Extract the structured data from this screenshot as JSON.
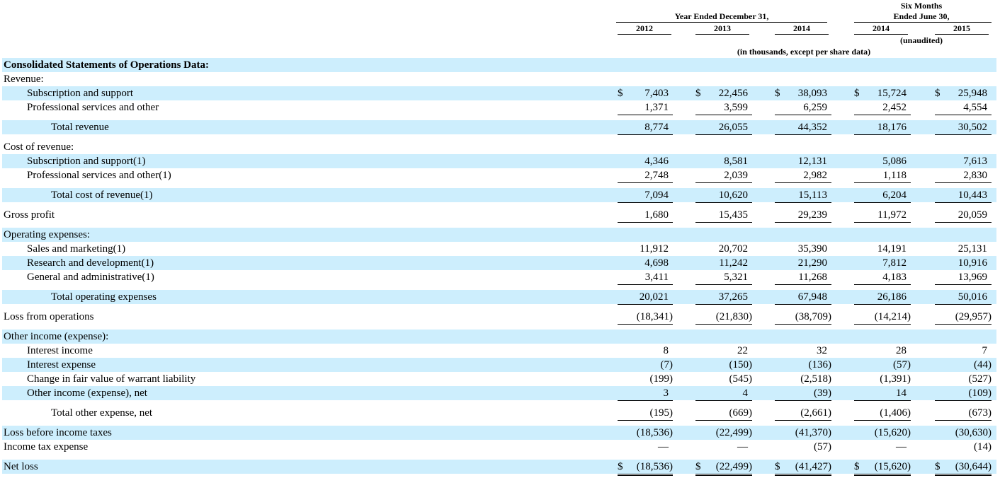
{
  "header": {
    "six_months_line1": "Six Months",
    "six_months_line2": "Ended June 30,",
    "year_ended": "Year Ended December 31,",
    "years": [
      "2012",
      "2013",
      "2014",
      "2014",
      "2015"
    ],
    "unaudited": "(unaudited)",
    "units_note": "(in thousands, except per share data)"
  },
  "section_title": "Consolidated Statements of Operations Data:",
  "currency_symbol": "$",
  "rows": [
    {
      "label": "Revenue:",
      "values": []
    },
    {
      "label": "Subscription and support",
      "values": [
        "7,403",
        "22,456",
        "38,093",
        "15,724",
        "25,948"
      ]
    },
    {
      "label": "Professional services and other",
      "values": [
        "1,371",
        "3,599",
        "6,259",
        "2,452",
        "4,554"
      ]
    },
    {
      "label": "Total revenue",
      "values": [
        "8,774",
        "26,055",
        "44,352",
        "18,176",
        "30,502"
      ]
    },
    {
      "label": "Cost of revenue:",
      "values": []
    },
    {
      "label": "Subscription and support(1)",
      "values": [
        "4,346",
        "8,581",
        "12,131",
        "5,086",
        "7,613"
      ]
    },
    {
      "label": "Professional services and other(1)",
      "values": [
        "2,748",
        "2,039",
        "2,982",
        "1,118",
        "2,830"
      ]
    },
    {
      "label": "Total cost of revenue(1)",
      "values": [
        "7,094",
        "10,620",
        "15,113",
        "6,204",
        "10,443"
      ]
    },
    {
      "label": "Gross profit",
      "values": [
        "1,680",
        "15,435",
        "29,239",
        "11,972",
        "20,059"
      ]
    },
    {
      "label": "Operating expenses:",
      "values": []
    },
    {
      "label": "Sales and marketing(1)",
      "values": [
        "11,912",
        "20,702",
        "35,390",
        "14,191",
        "25,131"
      ]
    },
    {
      "label": "Research and development(1)",
      "values": [
        "4,698",
        "11,242",
        "21,290",
        "7,812",
        "10,916"
      ]
    },
    {
      "label": "General and administrative(1)",
      "values": [
        "3,411",
        "5,321",
        "11,268",
        "4,183",
        "13,969"
      ]
    },
    {
      "label": "Total operating expenses",
      "values": [
        "20,021",
        "37,265",
        "67,948",
        "26,186",
        "50,016"
      ]
    },
    {
      "label": "Loss from operations",
      "values": [
        "(18,341)",
        "(21,830)",
        "(38,709)",
        "(14,214)",
        "(29,957)"
      ]
    },
    {
      "label": "Other income (expense):",
      "values": []
    },
    {
      "label": "Interest income",
      "values": [
        "8",
        "22",
        "32",
        "28",
        "7"
      ]
    },
    {
      "label": "Interest expense",
      "values": [
        "(7)",
        "(150)",
        "(136)",
        "(57)",
        "(44)"
      ]
    },
    {
      "label": "Change in fair value of warrant liability",
      "values": [
        "(199)",
        "(545)",
        "(2,518)",
        "(1,391)",
        "(527)"
      ]
    },
    {
      "label": "Other income (expense), net",
      "values": [
        "3",
        "4",
        "(39)",
        "14",
        "(109)"
      ]
    },
    {
      "label": "Total other expense, net",
      "values": [
        "(195)",
        "(669)",
        "(2,661)",
        "(1,406)",
        "(673)"
      ]
    },
    {
      "label": "Loss before income taxes",
      "values": [
        "(18,536)",
        "(22,499)",
        "(41,370)",
        "(15,620)",
        "(30,630)"
      ]
    },
    {
      "label": "Income tax expense",
      "values": [
        "—",
        "—",
        "(57)",
        "—",
        "(14)"
      ]
    },
    {
      "label": "Net loss",
      "values": [
        "(18,536)",
        "(22,499)",
        "(41,427)",
        "(15,620)",
        "(30,644)"
      ]
    }
  ]
}
